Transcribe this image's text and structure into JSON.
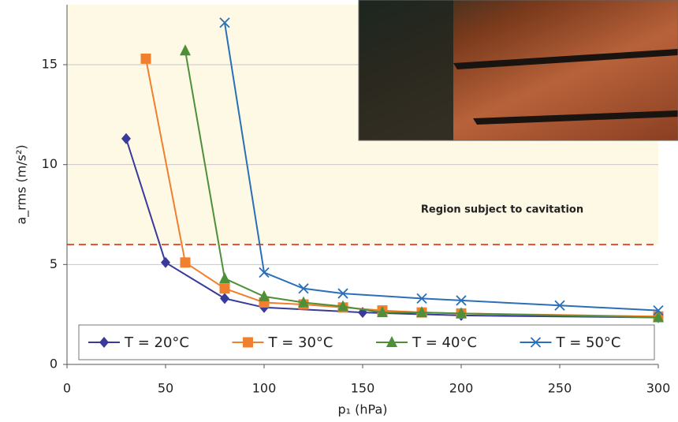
{
  "chart_data": {
    "type": "line",
    "ylabel": "a_rms (m/s²)",
    "xlabel": "p₁ (hPa)",
    "annotation": "Region subject to cavitation",
    "threshold": 6,
    "threshold_color": "#e8533a",
    "xlim": [
      0,
      300
    ],
    "xticks": [
      0,
      50,
      100,
      150,
      200,
      250,
      300
    ],
    "ylim": [
      0,
      18
    ],
    "yticks": [
      0,
      5,
      10,
      15
    ],
    "grid": true,
    "legend": "bottom",
    "series": [
      {
        "name": "T = 20°C",
        "color": "#3a3a9a",
        "marker": "diamond",
        "x": [
          30,
          50,
          80,
          100,
          150,
          200,
          300
        ],
        "values": [
          11.3,
          5.1,
          3.3,
          2.85,
          2.6,
          2.45,
          2.35
        ]
      },
      {
        "name": "T = 30°C",
        "color": "#f07f2e",
        "marker": "square",
        "x": [
          40,
          60,
          80,
          100,
          120,
          140,
          160,
          180,
          200,
          300
        ],
        "values": [
          15.3,
          5.1,
          3.8,
          3.1,
          3.0,
          2.85,
          2.7,
          2.6,
          2.55,
          2.4
        ]
      },
      {
        "name": "T = 40°C",
        "color": "#4e8f3a",
        "marker": "triangle",
        "x": [
          60,
          80,
          100,
          120,
          140,
          160,
          180,
          200,
          300
        ],
        "values": [
          15.7,
          4.3,
          3.4,
          3.1,
          2.9,
          2.6,
          2.6,
          2.55,
          2.35
        ]
      },
      {
        "name": "T = 50°C",
        "color": "#2a6fb8",
        "marker": "cross",
        "x": [
          80,
          100,
          120,
          140,
          180,
          200,
          250,
          300
        ],
        "values": [
          17.1,
          4.6,
          3.8,
          3.55,
          3.3,
          3.2,
          2.95,
          2.7
        ]
      }
    ]
  }
}
